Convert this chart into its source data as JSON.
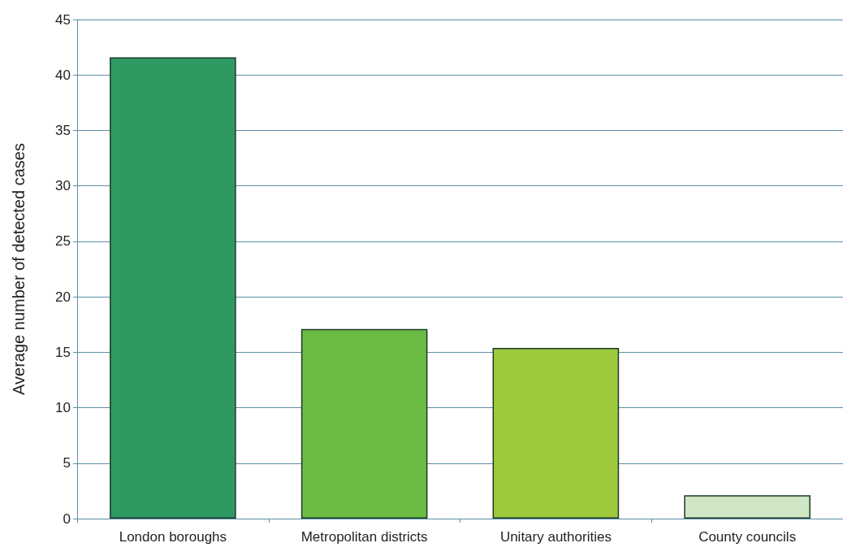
{
  "chart_data": {
    "type": "bar",
    "ylabel": "Average number of detected cases",
    "categories": [
      "London boroughs",
      "Metropolitan districts",
      "Unitary authorities",
      "County councils"
    ],
    "values": [
      41.6,
      17.1,
      15.4,
      2.1
    ],
    "colors": [
      "#2e9a62",
      "#6cbb44",
      "#9ec93c",
      "#cfe6c4"
    ],
    "ylim": [
      0,
      45
    ],
    "yticks": [
      0,
      5,
      10,
      15,
      20,
      25,
      30,
      35,
      40,
      45
    ],
    "grid": "y"
  }
}
